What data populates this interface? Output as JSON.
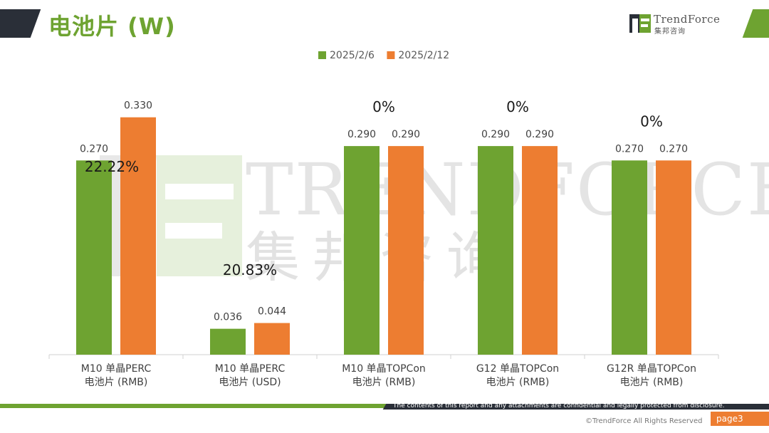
{
  "header": {
    "title": "电池片 (W)",
    "logo_name": "TrendForce",
    "logo_cn": "集邦咨询"
  },
  "watermark": {
    "name": "TRENDFORCE",
    "cn": "集邦咨询"
  },
  "colors": {
    "green": "#6ea331",
    "orange": "#ed7d31",
    "dark": "#2a2f38"
  },
  "chart_data": {
    "type": "bar",
    "categories": [
      [
        "M10 单晶PERC",
        "电池片 (RMB)"
      ],
      [
        "M10 单晶PERC",
        "电池片 (USD)"
      ],
      [
        "M10 单晶TOPCon",
        "电池片 (RMB)"
      ],
      [
        "G12 单晶TOPCon",
        "电池片 (RMB)"
      ],
      [
        "G12R 单晶TOPCon",
        "电池片 (RMB)"
      ]
    ],
    "series": [
      {
        "name": "2025/2/6",
        "color": "#6ea331",
        "values": [
          0.27,
          0.036,
          0.29,
          0.29,
          0.27
        ],
        "labels": [
          "0.270",
          "0.036",
          "0.290",
          "0.290",
          "0.270"
        ]
      },
      {
        "name": "2025/2/12",
        "color": "#ed7d31",
        "values": [
          0.33,
          0.044,
          0.29,
          0.29,
          0.27
        ],
        "labels": [
          "0.330",
          "0.044",
          "0.290",
          "0.290",
          "0.270"
        ]
      }
    ],
    "change_labels": [
      "22.22%",
      "20.83%",
      "0%",
      "0%",
      "0%"
    ],
    "legend_position": "top-center",
    "grid": false
  },
  "footer": {
    "disclaimer": "The contents of this report and any attachments are confidential and legally protected from disclosure.",
    "copyright": "©TrendForce All Rights Reserved",
    "page": "page3"
  }
}
